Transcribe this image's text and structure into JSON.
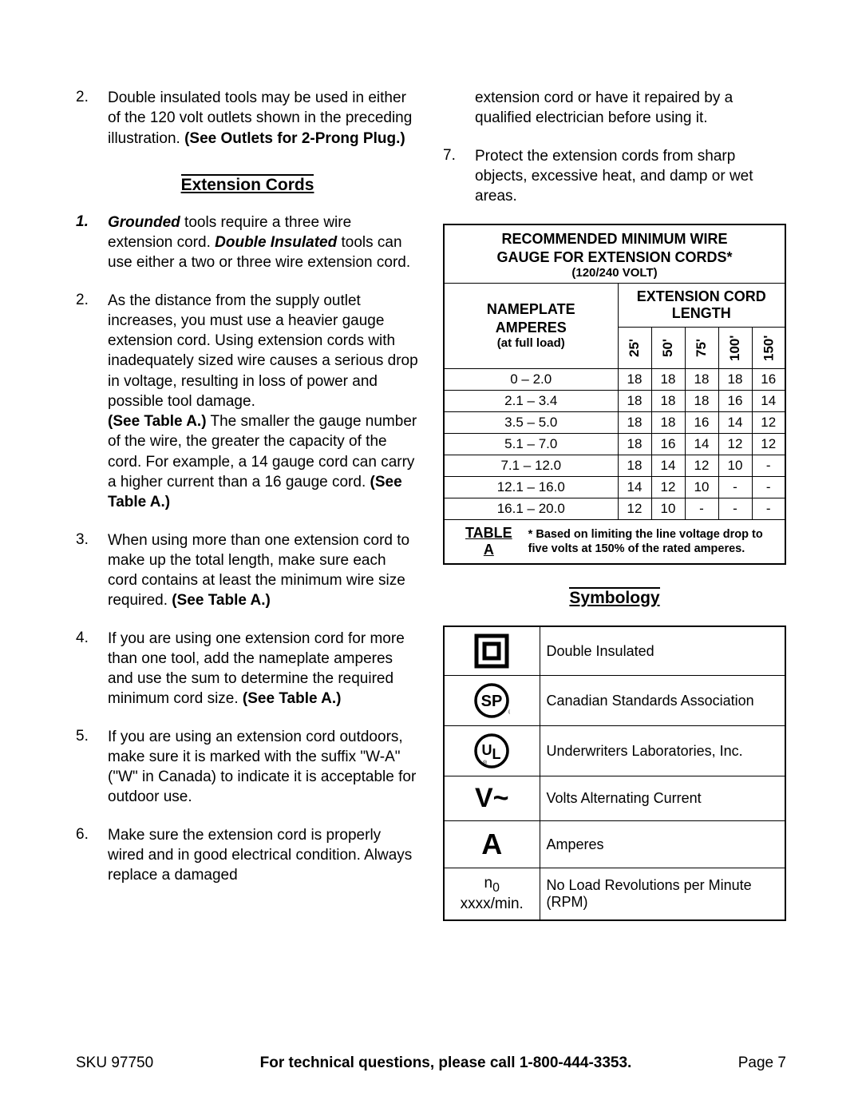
{
  "left": {
    "item2": {
      "num": "2.",
      "p1": "Double insulated tools may be used in either of the 120 volt outlets shown in the preceding illustration.  ",
      "bold": "(See Outlets for 2-Prong Plug.)"
    },
    "section_title": "Extension Cords",
    "ec1": {
      "num": "1.",
      "b1": "Grounded",
      "t1": " tools require a three wire extension cord.  ",
      "b2": "Double Insulated",
      "t2": " tools can use either a two or three wire extension cord."
    },
    "ec2": {
      "num": "2.",
      "p1": "As the distance from the supply outlet increases, you must use a heavier gauge extension cord.  Using extension cords with inadequately sized wire causes a serious drop in voltage, resulting in loss of power and possible tool damage.",
      "b1": "(See Table A.)",
      "p2": "  The smaller the gauge number of the wire, the greater the capacity of the cord.  For example, a 14 gauge cord can carry a higher current than a 16 gauge cord.  ",
      "b2": "(See Table A.)"
    },
    "ec3": {
      "num": "3.",
      "p": "When using more than one extension cord to make up the total length, make sure each cord contains at least the minimum wire size required.  ",
      "b": "(See Table A.)"
    },
    "ec4": {
      "num": "4.",
      "p": "If you are using one extension cord for more than one tool, add the nameplate amperes and use the sum to determine the required minimum cord size.  ",
      "b": "(See Table A.)"
    },
    "ec5": {
      "num": "5.",
      "p": "If you are using an extension cord outdoors, make sure it is marked with the suffix \"W-A\" (\"W\" in Canada) to indicate it is acceptable for outdoor use."
    },
    "ec6": {
      "num": "6.",
      "p": "Make sure the extension cord is properly wired and in good electrical condition.  Always replace a damaged "
    }
  },
  "right": {
    "cont6": "extension cord or have it repaired by a qualified electrician before using it.",
    "ec7": {
      "num": "7.",
      "p": "Protect the extension cords from sharp objects, excessive heat, and damp or wet areas."
    },
    "wire_table": {
      "title_line1": "RECOMMENDED MINIMUM WIRE",
      "title_line2": "GAUGE FOR EXTENSION CORDS*",
      "title_sub": "(120/240 VOLT)",
      "nameplate_l1": "NAMEPLATE",
      "nameplate_l2": "AMPERES",
      "nameplate_sub": "(at full load)",
      "ecl_l1": "EXTENSION CORD",
      "ecl_l2": "LENGTH",
      "lengths": [
        "25'",
        "50'",
        "75'",
        "100'",
        "150'"
      ],
      "rows": [
        {
          "range": "0 – 2.0",
          "v": [
            "18",
            "18",
            "18",
            "18",
            "16"
          ]
        },
        {
          "range": "2.1 – 3.4",
          "v": [
            "18",
            "18",
            "18",
            "16",
            "14"
          ]
        },
        {
          "range": "3.5 – 5.0",
          "v": [
            "18",
            "18",
            "16",
            "14",
            "12"
          ]
        },
        {
          "range": "5.1 – 7.0",
          "v": [
            "18",
            "16",
            "14",
            "12",
            "12"
          ]
        },
        {
          "range": "7.1 – 12.0",
          "v": [
            "18",
            "14",
            "12",
            "10",
            "-"
          ]
        },
        {
          "range": "12.1 – 16.0",
          "v": [
            "14",
            "12",
            "10",
            "-",
            "-"
          ]
        },
        {
          "range": "16.1 – 20.0",
          "v": [
            "12",
            "10",
            "-",
            "-",
            "-"
          ]
        }
      ],
      "foot_label": "TABLE A",
      "foot_note": "* Based on limiting the line voltage drop to five volts at 150% of the rated amperes."
    },
    "sym_title": "Symbology",
    "symbology": [
      {
        "label": "Double Insulated"
      },
      {
        "label": "Canadian Standards Association"
      },
      {
        "label": "Underwriters Laboratories, Inc."
      },
      {
        "label": "Volts Alternating Current"
      },
      {
        "label": "Amperes"
      },
      {
        "label": "No Load Revolutions per Minute (RPM)"
      }
    ],
    "sym_no_text": "n",
    "sym_no_sub": "0",
    "sym_no_rest": " xxxx/min."
  },
  "footer": {
    "sku": "SKU 97750",
    "mid": "For technical questions, please call 1-800-444-3353.",
    "page": "Page 7"
  }
}
